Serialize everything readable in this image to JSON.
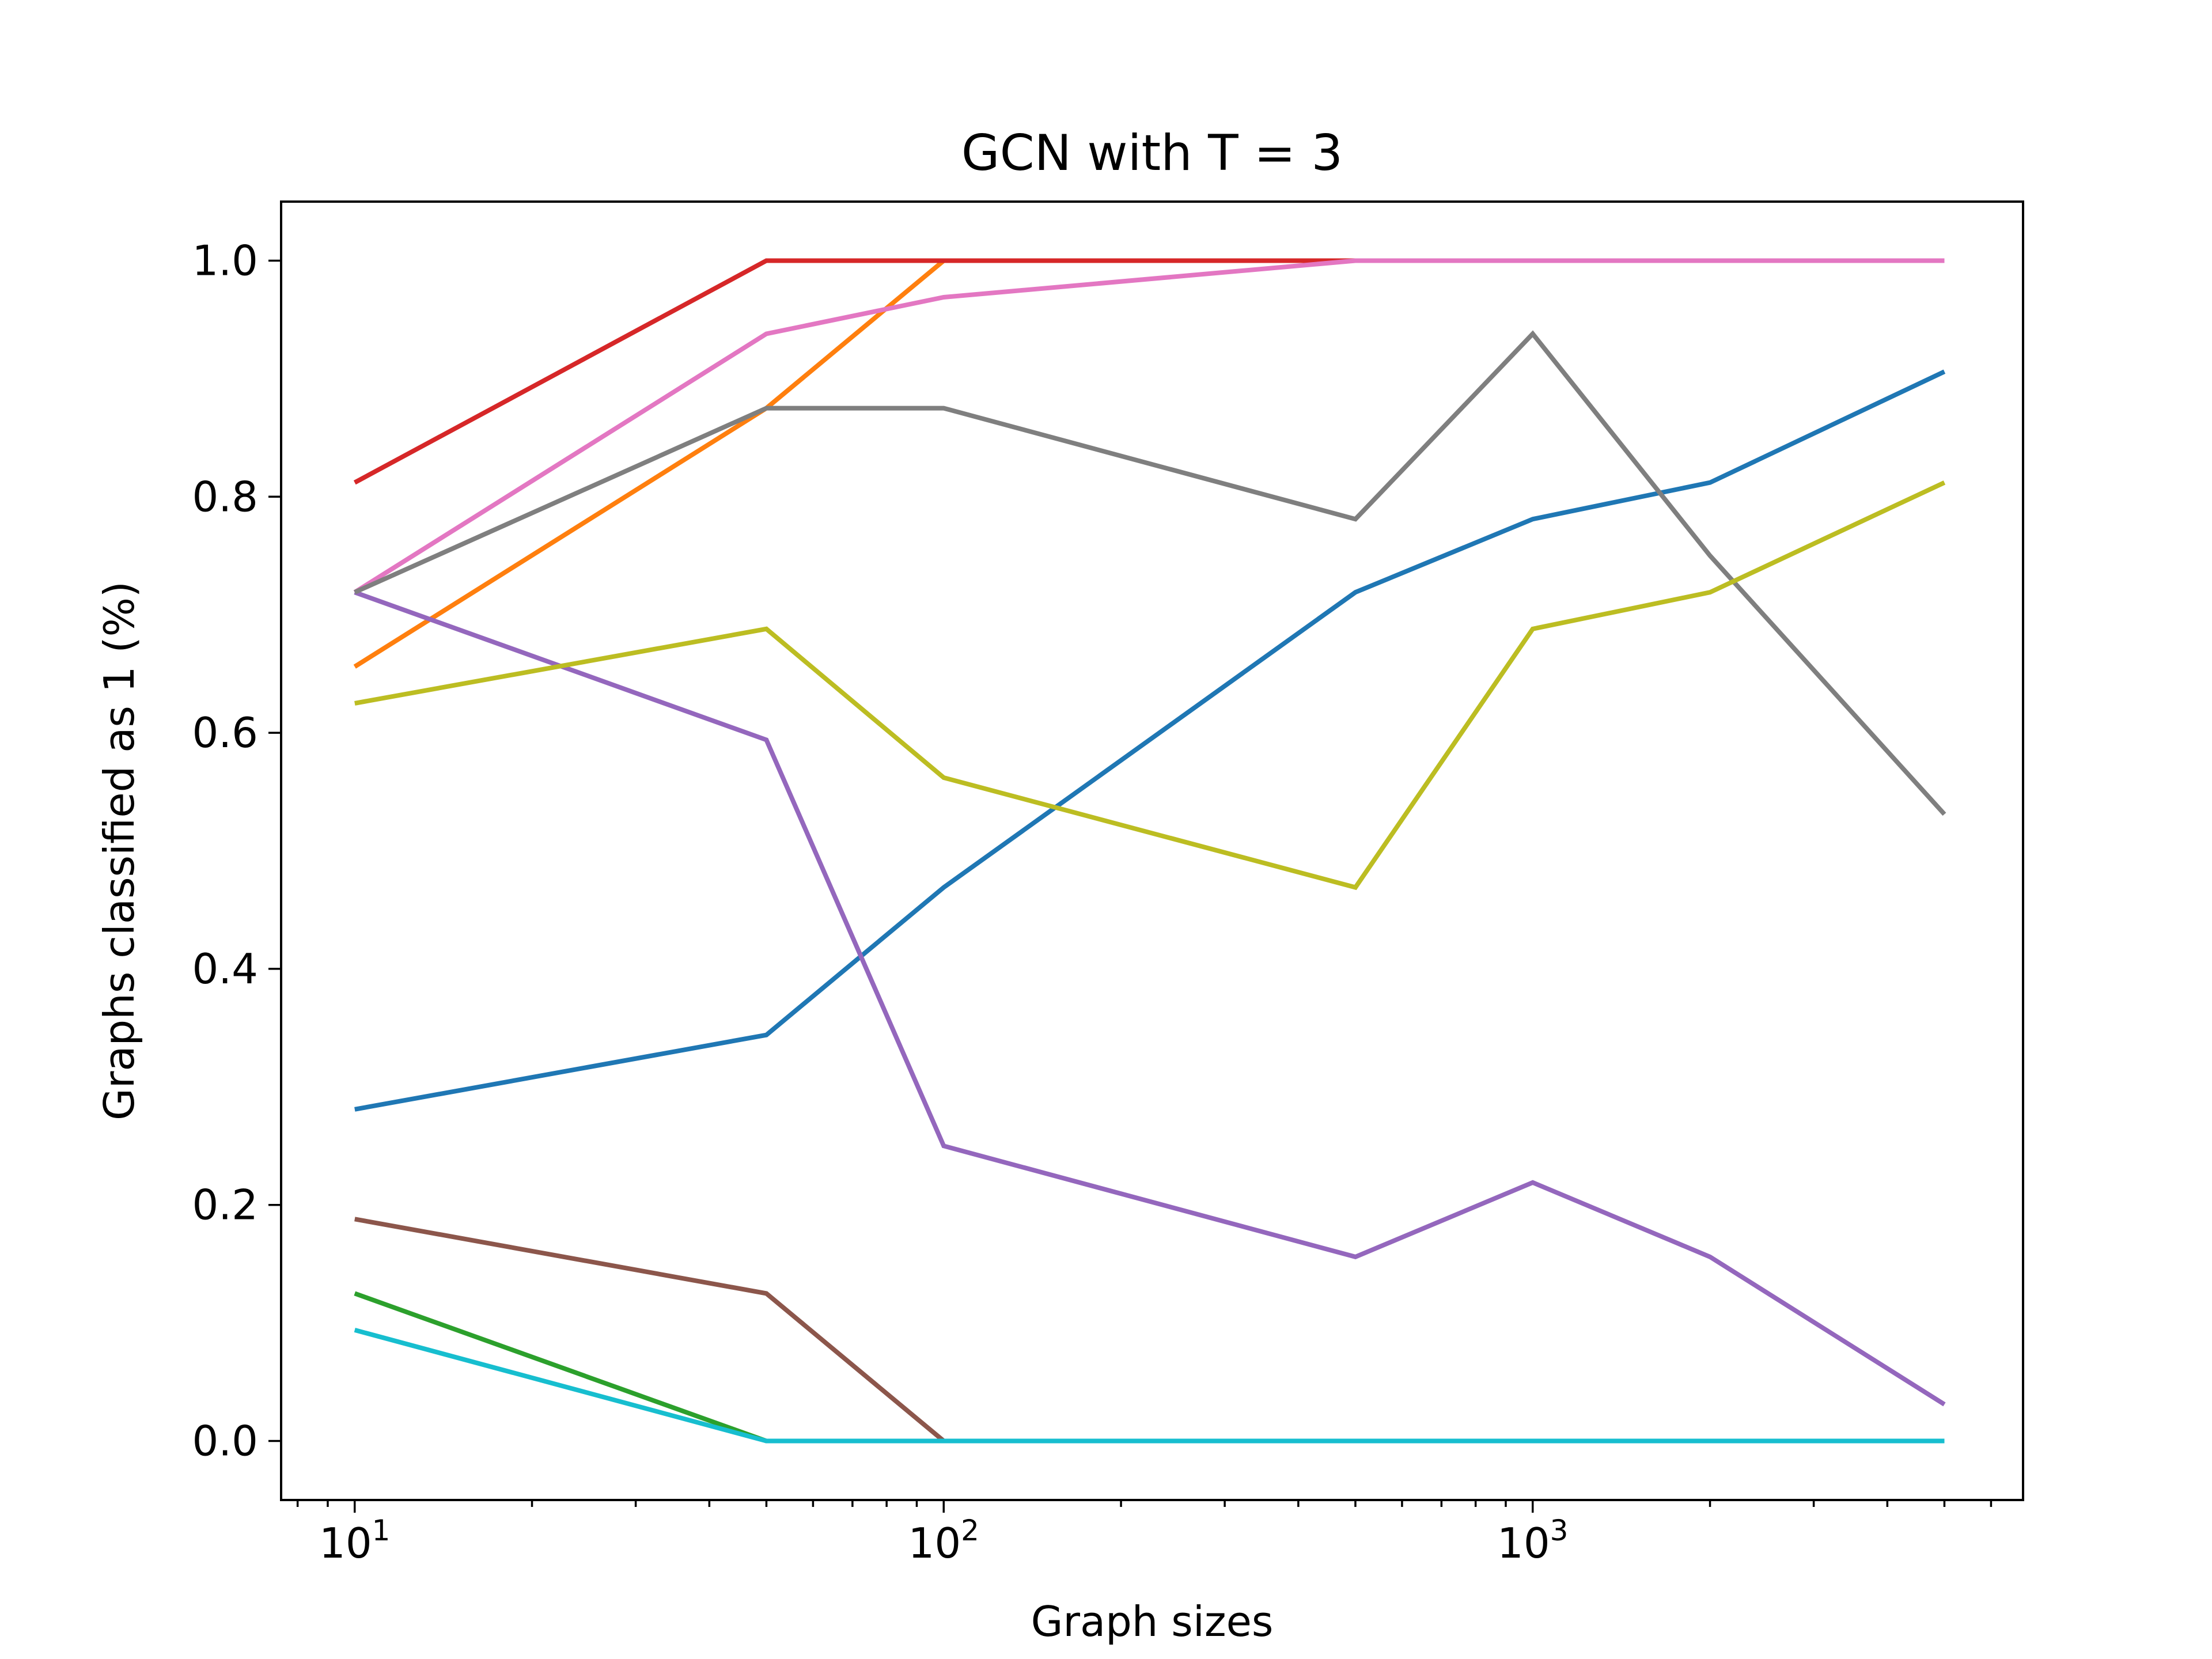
{
  "chart_data": {
    "type": "line",
    "title": "GCN with T = 3",
    "xlabel": "Graph sizes",
    "ylabel": "Graphs classified as 1 (%)",
    "xscale": "log",
    "xlim": [
      7.5,
      6800
    ],
    "ylim": [
      -0.05,
      1.05
    ],
    "x": [
      10,
      50,
      100,
      500,
      1000,
      2000,
      5000
    ],
    "xticks": [
      {
        "value": 10,
        "base": "10",
        "exp": "1"
      },
      {
        "value": 100,
        "base": "10",
        "exp": "2"
      },
      {
        "value": 1000,
        "base": "10",
        "exp": "3"
      }
    ],
    "yticks": [
      {
        "value": 0.0,
        "label": "0.0"
      },
      {
        "value": 0.2,
        "label": "0.2"
      },
      {
        "value": 0.4,
        "label": "0.4"
      },
      {
        "value": 0.6,
        "label": "0.6"
      },
      {
        "value": 0.8,
        "label": "0.8"
      },
      {
        "value": 1.0,
        "label": "1.0"
      }
    ],
    "grid": false,
    "legend": "none",
    "series": [
      {
        "color": "#1f77b4",
        "values": [
          0.281,
          0.344,
          0.469,
          0.719,
          0.781,
          0.812,
          0.906
        ]
      },
      {
        "color": "#ff7f0e",
        "values": [
          0.656,
          0.875,
          1.0,
          1.0,
          1.0,
          1.0,
          1.0
        ]
      },
      {
        "color": "#2ca02c",
        "values": [
          0.125,
          0.0,
          0.0,
          0.0,
          0.0,
          0.0,
          0.0
        ]
      },
      {
        "color": "#d62728",
        "values": [
          0.812,
          1.0,
          1.0,
          1.0,
          1.0,
          1.0,
          1.0
        ]
      },
      {
        "color": "#9467bd",
        "values": [
          0.719,
          0.594,
          0.25,
          0.156,
          0.219,
          0.156,
          0.031
        ]
      },
      {
        "color": "#8c564b",
        "values": [
          0.188,
          0.125,
          0.0,
          0.0,
          0.0,
          0.0,
          0.0
        ]
      },
      {
        "color": "#e377c2",
        "values": [
          0.719,
          0.938,
          0.969,
          1.0,
          1.0,
          1.0,
          1.0
        ]
      },
      {
        "color": "#7f7f7f",
        "values": [
          0.719,
          0.875,
          0.875,
          0.781,
          0.938,
          0.75,
          0.531
        ]
      },
      {
        "color": "#bcbd22",
        "values": [
          0.625,
          0.688,
          0.562,
          0.469,
          0.688,
          0.719,
          0.812
        ]
      },
      {
        "color": "#17becf",
        "values": [
          0.094,
          0.0,
          0.0,
          0.0,
          0.0,
          0.0,
          0.0
        ]
      }
    ]
  }
}
